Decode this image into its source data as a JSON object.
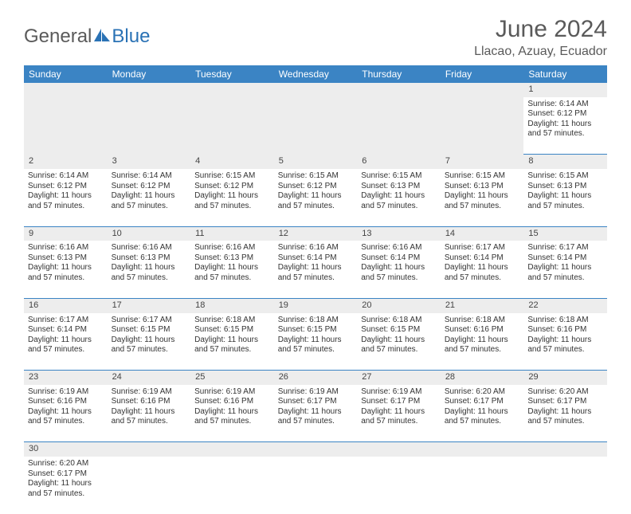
{
  "brand": {
    "name_part1": "General",
    "name_part2": "Blue",
    "color_gray": "#5a5a5a",
    "color_blue": "#2a72b5",
    "icon_color": "#2a72b5"
  },
  "header": {
    "month_title": "June 2024",
    "location": "Llacao, Azuay, Ecuador",
    "title_fontsize": 30,
    "location_fontsize": 16,
    "title_color": "#5a5a5a"
  },
  "calendar": {
    "header_bg": "#3b84c4",
    "header_text_color": "#ffffff",
    "daynum_bg": "#ededed",
    "cell_border_color": "#3b84c4",
    "text_color": "#333333",
    "fontsize_header": 12,
    "fontsize_daynum": 11,
    "fontsize_detail": 10,
    "columns": [
      "Sunday",
      "Monday",
      "Tuesday",
      "Wednesday",
      "Thursday",
      "Friday",
      "Saturday"
    ],
    "weeks": [
      [
        null,
        null,
        null,
        null,
        null,
        null,
        {
          "num": "1",
          "sunrise": "Sunrise: 6:14 AM",
          "sunset": "Sunset: 6:12 PM",
          "daylight": "Daylight: 11 hours and 57 minutes."
        }
      ],
      [
        {
          "num": "2",
          "sunrise": "Sunrise: 6:14 AM",
          "sunset": "Sunset: 6:12 PM",
          "daylight": "Daylight: 11 hours and 57 minutes."
        },
        {
          "num": "3",
          "sunrise": "Sunrise: 6:14 AM",
          "sunset": "Sunset: 6:12 PM",
          "daylight": "Daylight: 11 hours and 57 minutes."
        },
        {
          "num": "4",
          "sunrise": "Sunrise: 6:15 AM",
          "sunset": "Sunset: 6:12 PM",
          "daylight": "Daylight: 11 hours and 57 minutes."
        },
        {
          "num": "5",
          "sunrise": "Sunrise: 6:15 AM",
          "sunset": "Sunset: 6:12 PM",
          "daylight": "Daylight: 11 hours and 57 minutes."
        },
        {
          "num": "6",
          "sunrise": "Sunrise: 6:15 AM",
          "sunset": "Sunset: 6:13 PM",
          "daylight": "Daylight: 11 hours and 57 minutes."
        },
        {
          "num": "7",
          "sunrise": "Sunrise: 6:15 AM",
          "sunset": "Sunset: 6:13 PM",
          "daylight": "Daylight: 11 hours and 57 minutes."
        },
        {
          "num": "8",
          "sunrise": "Sunrise: 6:15 AM",
          "sunset": "Sunset: 6:13 PM",
          "daylight": "Daylight: 11 hours and 57 minutes."
        }
      ],
      [
        {
          "num": "9",
          "sunrise": "Sunrise: 6:16 AM",
          "sunset": "Sunset: 6:13 PM",
          "daylight": "Daylight: 11 hours and 57 minutes."
        },
        {
          "num": "10",
          "sunrise": "Sunrise: 6:16 AM",
          "sunset": "Sunset: 6:13 PM",
          "daylight": "Daylight: 11 hours and 57 minutes."
        },
        {
          "num": "11",
          "sunrise": "Sunrise: 6:16 AM",
          "sunset": "Sunset: 6:13 PM",
          "daylight": "Daylight: 11 hours and 57 minutes."
        },
        {
          "num": "12",
          "sunrise": "Sunrise: 6:16 AM",
          "sunset": "Sunset: 6:14 PM",
          "daylight": "Daylight: 11 hours and 57 minutes."
        },
        {
          "num": "13",
          "sunrise": "Sunrise: 6:16 AM",
          "sunset": "Sunset: 6:14 PM",
          "daylight": "Daylight: 11 hours and 57 minutes."
        },
        {
          "num": "14",
          "sunrise": "Sunrise: 6:17 AM",
          "sunset": "Sunset: 6:14 PM",
          "daylight": "Daylight: 11 hours and 57 minutes."
        },
        {
          "num": "15",
          "sunrise": "Sunrise: 6:17 AM",
          "sunset": "Sunset: 6:14 PM",
          "daylight": "Daylight: 11 hours and 57 minutes."
        }
      ],
      [
        {
          "num": "16",
          "sunrise": "Sunrise: 6:17 AM",
          "sunset": "Sunset: 6:14 PM",
          "daylight": "Daylight: 11 hours and 57 minutes."
        },
        {
          "num": "17",
          "sunrise": "Sunrise: 6:17 AM",
          "sunset": "Sunset: 6:15 PM",
          "daylight": "Daylight: 11 hours and 57 minutes."
        },
        {
          "num": "18",
          "sunrise": "Sunrise: 6:18 AM",
          "sunset": "Sunset: 6:15 PM",
          "daylight": "Daylight: 11 hours and 57 minutes."
        },
        {
          "num": "19",
          "sunrise": "Sunrise: 6:18 AM",
          "sunset": "Sunset: 6:15 PM",
          "daylight": "Daylight: 11 hours and 57 minutes."
        },
        {
          "num": "20",
          "sunrise": "Sunrise: 6:18 AM",
          "sunset": "Sunset: 6:15 PM",
          "daylight": "Daylight: 11 hours and 57 minutes."
        },
        {
          "num": "21",
          "sunrise": "Sunrise: 6:18 AM",
          "sunset": "Sunset: 6:16 PM",
          "daylight": "Daylight: 11 hours and 57 minutes."
        },
        {
          "num": "22",
          "sunrise": "Sunrise: 6:18 AM",
          "sunset": "Sunset: 6:16 PM",
          "daylight": "Daylight: 11 hours and 57 minutes."
        }
      ],
      [
        {
          "num": "23",
          "sunrise": "Sunrise: 6:19 AM",
          "sunset": "Sunset: 6:16 PM",
          "daylight": "Daylight: 11 hours and 57 minutes."
        },
        {
          "num": "24",
          "sunrise": "Sunrise: 6:19 AM",
          "sunset": "Sunset: 6:16 PM",
          "daylight": "Daylight: 11 hours and 57 minutes."
        },
        {
          "num": "25",
          "sunrise": "Sunrise: 6:19 AM",
          "sunset": "Sunset: 6:16 PM",
          "daylight": "Daylight: 11 hours and 57 minutes."
        },
        {
          "num": "26",
          "sunrise": "Sunrise: 6:19 AM",
          "sunset": "Sunset: 6:17 PM",
          "daylight": "Daylight: 11 hours and 57 minutes."
        },
        {
          "num": "27",
          "sunrise": "Sunrise: 6:19 AM",
          "sunset": "Sunset: 6:17 PM",
          "daylight": "Daylight: 11 hours and 57 minutes."
        },
        {
          "num": "28",
          "sunrise": "Sunrise: 6:20 AM",
          "sunset": "Sunset: 6:17 PM",
          "daylight": "Daylight: 11 hours and 57 minutes."
        },
        {
          "num": "29",
          "sunrise": "Sunrise: 6:20 AM",
          "sunset": "Sunset: 6:17 PM",
          "daylight": "Daylight: 11 hours and 57 minutes."
        }
      ],
      [
        {
          "num": "30",
          "sunrise": "Sunrise: 6:20 AM",
          "sunset": "Sunset: 6:17 PM",
          "daylight": "Daylight: 11 hours and 57 minutes."
        },
        null,
        null,
        null,
        null,
        null,
        null
      ]
    ]
  }
}
